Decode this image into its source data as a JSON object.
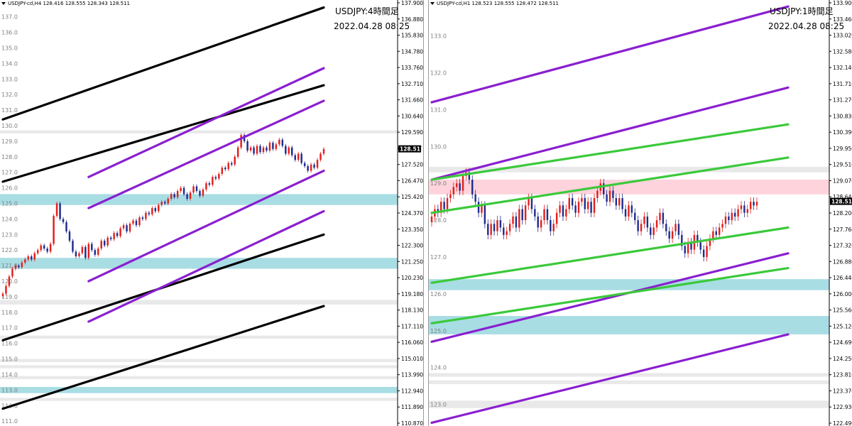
{
  "colors": {
    "bull": "#e0201c",
    "bear": "#1f2d8f",
    "purple": "#8a1fd0",
    "black": "#000000",
    "green": "#3bc93b",
    "cyan_zone": "#a9dde4",
    "grey_zone": "#e9e9e9",
    "pink_zone": "#ffd3dc",
    "grid_label": "#808080"
  },
  "left": {
    "header": "USDJPY-cd,H4  128.416 128.555 128.343 128.511",
    "title": "USDJPY:4時間足",
    "date": "2022.04.28 08:25",
    "price_badge": "128.511",
    "inner_labels": [
      "137.0",
      "136.0",
      "135.0",
      "134.0",
      "133.0",
      "132.0",
      "131.0",
      "130.0",
      "129.0",
      "128.0",
      "127.0",
      "126.0",
      "125.0",
      "124.0",
      "123.0",
      "122.0",
      "121.0",
      "120.0",
      "119.0",
      "118.0",
      "117.0",
      "116.0",
      "115.0",
      "114.0",
      "113.0",
      "112.0",
      "111.0"
    ],
    "axis_labels": [
      "137.900",
      "136.880",
      "135.830",
      "134.780",
      "133.760",
      "132.710",
      "131.660",
      "130.640",
      "129.590",
      "128.540",
      "127.520",
      "126.470",
      "125.420",
      "124.370",
      "123.350",
      "122.300",
      "121.250",
      "120.230",
      "119.180",
      "118.130",
      "117.110",
      "116.060",
      "115.010",
      "113.990",
      "112.940",
      "111.890",
      "110.870"
    ]
  },
  "right": {
    "header": "USDJPY-cd,H1  128.523 128.555 128.472 128.511",
    "title": "USDJPY:1時間足",
    "date": "2022.04.28 08:25",
    "price_badge": "128.511",
    "inner_labels": [
      "133.0",
      "132.0",
      "131.0",
      "130.0",
      "129.0",
      "128.0",
      "127.0",
      "126.0",
      "125.0",
      "124.0",
      "123.0"
    ],
    "axis_labels": [
      "133.900",
      "133.460",
      "133.020",
      "132.580",
      "132.140",
      "131.710",
      "131.270",
      "130.830",
      "130.390",
      "129.950",
      "129.510",
      "129.070",
      "128.640",
      "128.200",
      "127.760",
      "127.320",
      "126.880",
      "126.440",
      "126.000",
      "125.560",
      "125.120",
      "124.690",
      "124.250",
      "123.810",
      "123.370",
      "122.930",
      "122.490"
    ]
  },
  "chart_data": [
    {
      "type": "candlestick",
      "symbol": "USDJPY",
      "timeframe": "H4",
      "title": "USDJPY:4時間足",
      "date": "2022.04.28 08:25",
      "ylim": [
        110.87,
        137.9
      ],
      "last_close": 128.511,
      "closes": [
        119.2,
        119.7,
        120.3,
        120.8,
        121.0,
        120.9,
        121.2,
        121.4,
        121.6,
        121.4,
        121.8,
        122.0,
        122.3,
        122.1,
        121.9,
        122.4,
        124.2,
        125.0,
        124.0,
        123.8,
        123.2,
        122.6,
        121.9,
        121.6,
        121.8,
        122.2,
        121.5,
        122.4,
        122.0,
        121.7,
        122.1,
        122.6,
        122.3,
        122.8,
        122.7,
        123.1,
        122.9,
        123.4,
        123.6,
        123.2,
        123.7,
        123.9,
        123.6,
        124.1,
        124.0,
        124.4,
        124.3,
        124.7,
        124.5,
        124.9,
        125.1,
        125.0,
        125.3,
        125.6,
        125.4,
        125.8,
        126.0,
        125.6,
        125.3,
        125.7,
        126.1,
        125.8,
        125.5,
        125.9,
        126.3,
        126.2,
        126.7,
        126.6,
        126.9,
        127.3,
        127.2,
        127.6,
        127.5,
        128.0,
        128.6,
        129.4,
        129.0,
        128.4,
        128.6,
        128.2,
        128.7,
        128.3,
        128.6,
        128.4,
        128.9,
        128.5,
        128.8,
        129.1,
        128.7,
        128.2,
        128.6,
        128.1,
        127.8,
        128.2,
        127.6,
        127.4,
        127.1,
        127.5,
        127.3,
        127.8,
        128.2,
        128.5
      ],
      "trendlines": [
        {
          "color": "black",
          "from": [
            0,
            130.4
          ],
          "to": [
            101,
            137.6
          ]
        },
        {
          "color": "black",
          "from": [
            0,
            126.4
          ],
          "to": [
            101,
            132.6
          ]
        },
        {
          "color": "black",
          "from": [
            0,
            116.2
          ],
          "to": [
            101,
            123.0
          ]
        },
        {
          "color": "black",
          "from": [
            0,
            111.8
          ],
          "to": [
            101,
            118.4
          ]
        },
        {
          "color": "purple",
          "from": [
            27,
            126.7
          ],
          "to": [
            101,
            133.7
          ]
        },
        {
          "color": "purple",
          "from": [
            27,
            124.7
          ],
          "to": [
            101,
            131.6
          ]
        },
        {
          "color": "purple",
          "from": [
            27,
            120.0
          ],
          "to": [
            101,
            127.1
          ]
        },
        {
          "color": "purple",
          "from": [
            27,
            117.4
          ],
          "to": [
            101,
            124.5
          ]
        }
      ],
      "zones": [
        {
          "color": "cyan",
          "from": 124.9,
          "to": 125.6
        },
        {
          "color": "cyan",
          "from": 120.8,
          "to": 121.5
        },
        {
          "color": "cyan",
          "from": 112.8,
          "to": 113.2
        },
        {
          "color": "grey",
          "from": 129.5,
          "to": 129.7
        },
        {
          "color": "grey",
          "from": 118.5,
          "to": 118.8
        },
        {
          "color": "grey",
          "from": 116.3,
          "to": 116.5
        },
        {
          "color": "grey",
          "from": 114.8,
          "to": 115.0
        },
        {
          "color": "grey",
          "from": 114.4,
          "to": 114.6
        },
        {
          "color": "grey",
          "from": 113.7,
          "to": 113.9
        },
        {
          "color": "grey",
          "from": 112.3,
          "to": 112.5
        }
      ]
    },
    {
      "type": "candlestick",
      "symbol": "USDJPY",
      "timeframe": "H1",
      "title": "USDJPY:1時間足",
      "date": "2022.04.28 08:25",
      "ylim": [
        122.49,
        133.9
      ],
      "last_close": 128.511,
      "closes": [
        128.1,
        128.3,
        128.2,
        128.5,
        128.3,
        128.6,
        128.7,
        128.9,
        129.0,
        128.8,
        129.2,
        129.3,
        129.1,
        128.7,
        128.5,
        128.2,
        128.4,
        127.9,
        127.6,
        127.9,
        127.7,
        128.0,
        127.8,
        127.6,
        127.7,
        127.9,
        128.1,
        127.8,
        128.3,
        128.0,
        128.4,
        128.6,
        128.3,
        128.1,
        127.8,
        128.0,
        128.3,
        128.0,
        127.7,
        127.9,
        128.2,
        128.4,
        128.1,
        128.3,
        128.6,
        128.4,
        128.2,
        128.5,
        128.6,
        128.3,
        128.5,
        128.2,
        128.6,
        128.8,
        129.0,
        128.7,
        128.5,
        128.8,
        128.6,
        128.4,
        128.6,
        128.3,
        128.1,
        128.4,
        128.2,
        128.0,
        127.7,
        127.9,
        128.1,
        127.8,
        127.6,
        127.8,
        128.0,
        128.2,
        127.9,
        127.7,
        127.5,
        127.7,
        127.9,
        127.6,
        127.3,
        127.1,
        127.4,
        127.2,
        127.6,
        127.4,
        127.2,
        127.0,
        127.3,
        127.5,
        127.7,
        127.6,
        127.8,
        127.9,
        128.1,
        128.0,
        128.2,
        128.1,
        128.3,
        128.4,
        128.2,
        128.3,
        128.5,
        128.4,
        128.5
      ],
      "trendlines": [
        {
          "color": "purple",
          "from": [
            0,
            131.2
          ],
          "to": [
            114,
            133.8
          ]
        },
        {
          "color": "purple",
          "from": [
            0,
            129.1
          ],
          "to": [
            114,
            131.6
          ]
        },
        {
          "color": "purple",
          "from": [
            0,
            124.7
          ],
          "to": [
            114,
            127.1
          ]
        },
        {
          "color": "purple",
          "from": [
            0,
            122.5
          ],
          "to": [
            114,
            124.9
          ]
        },
        {
          "color": "green",
          "from": [
            0,
            129.1
          ],
          "to": [
            114,
            130.6
          ]
        },
        {
          "color": "green",
          "from": [
            0,
            128.2
          ],
          "to": [
            114,
            129.7
          ]
        },
        {
          "color": "green",
          "from": [
            0,
            126.3
          ],
          "to": [
            114,
            127.8
          ]
        },
        {
          "color": "green",
          "from": [
            0,
            125.2
          ],
          "to": [
            114,
            126.7
          ]
        }
      ],
      "zones": [
        {
          "color": "pink",
          "from": 128.7,
          "to": 129.1
        },
        {
          "color": "cyan",
          "from": 126.1,
          "to": 126.4
        },
        {
          "color": "cyan",
          "from": 124.9,
          "to": 125.4
        },
        {
          "color": "grey",
          "from": 129.3,
          "to": 129.45
        },
        {
          "color": "grey",
          "from": 123.75,
          "to": 123.85
        },
        {
          "color": "grey",
          "from": 123.55,
          "to": 123.65
        },
        {
          "color": "grey",
          "from": 122.9,
          "to": 123.1
        }
      ]
    }
  ]
}
